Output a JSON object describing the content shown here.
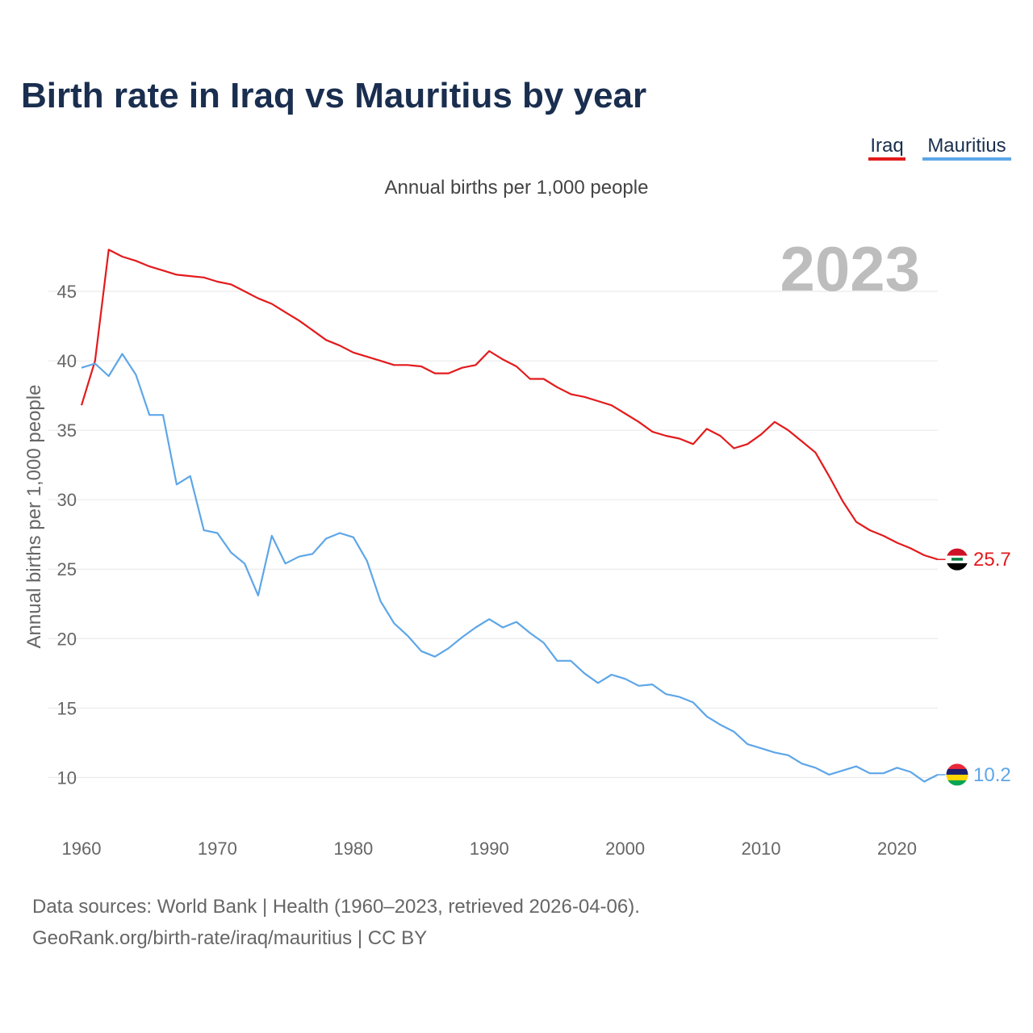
{
  "chart_data": {
    "type": "line",
    "title": "Birth rate in Iraq vs Mauritius by year",
    "subtitle": "Annual births per 1,000 people",
    "ylabel": "Annual births per 1,000 people",
    "xlabel": "",
    "year_label": "2023",
    "xlim": [
      1960,
      2023
    ],
    "ylim": [
      7,
      50
    ],
    "x_ticks": [
      1960,
      1970,
      1980,
      1990,
      2000,
      2010,
      2020
    ],
    "y_ticks": [
      10,
      15,
      20,
      25,
      30,
      35,
      40,
      45
    ],
    "legend_position": "top-right",
    "x": [
      1960,
      1961,
      1962,
      1963,
      1964,
      1965,
      1966,
      1967,
      1968,
      1969,
      1970,
      1971,
      1972,
      1973,
      1974,
      1975,
      1976,
      1977,
      1978,
      1979,
      1980,
      1981,
      1982,
      1983,
      1984,
      1985,
      1986,
      1987,
      1988,
      1989,
      1990,
      1991,
      1992,
      1993,
      1994,
      1995,
      1996,
      1997,
      1998,
      1999,
      2000,
      2001,
      2002,
      2003,
      2004,
      2005,
      2006,
      2007,
      2008,
      2009,
      2010,
      2011,
      2012,
      2013,
      2014,
      2015,
      2016,
      2017,
      2018,
      2019,
      2020,
      2021,
      2022,
      2023
    ],
    "series": [
      {
        "name": "Iraq",
        "color": "#e31a1c",
        "end_label": "25.7",
        "flag": "iraq-flag",
        "values": [
          36.8,
          40.0,
          48.0,
          47.5,
          47.2,
          46.8,
          46.5,
          46.2,
          46.1,
          46.0,
          45.7,
          45.5,
          45.0,
          44.5,
          44.1,
          43.5,
          42.9,
          42.2,
          41.5,
          41.1,
          40.6,
          40.3,
          40.0,
          39.7,
          39.7,
          39.6,
          39.1,
          39.1,
          39.5,
          39.7,
          40.7,
          40.1,
          39.6,
          38.7,
          38.7,
          38.1,
          37.6,
          37.4,
          37.1,
          36.8,
          36.2,
          35.6,
          34.9,
          34.6,
          34.4,
          34.0,
          35.1,
          34.6,
          33.7,
          34.0,
          34.7,
          35.6,
          35.0,
          34.2,
          33.4,
          31.7,
          29.9,
          28.4,
          27.8,
          27.4,
          26.9,
          26.5,
          26.0,
          25.7
        ]
      },
      {
        "name": "Mauritius",
        "color": "#5ea6e8",
        "end_label": "10.2",
        "flag": "mauritius-flag",
        "values": [
          39.5,
          39.8,
          38.9,
          40.5,
          39.0,
          36.1,
          36.1,
          31.1,
          31.7,
          27.8,
          27.6,
          26.2,
          25.4,
          23.1,
          27.4,
          25.4,
          25.9,
          26.1,
          27.2,
          27.6,
          27.3,
          25.6,
          22.7,
          21.1,
          20.2,
          19.1,
          18.7,
          19.3,
          20.1,
          20.8,
          21.4,
          20.8,
          21.2,
          20.4,
          19.7,
          18.4,
          18.4,
          17.5,
          16.8,
          17.4,
          17.1,
          16.6,
          16.7,
          16.0,
          15.8,
          15.4,
          14.4,
          13.8,
          13.3,
          12.4,
          12.1,
          11.8,
          11.6,
          11.0,
          10.7,
          10.2,
          10.5,
          10.8,
          10.3,
          10.3,
          10.7,
          10.4,
          9.7,
          10.2
        ]
      }
    ]
  },
  "legend": {
    "items": [
      "Iraq",
      "Mauritius"
    ]
  },
  "footer": {
    "line1": "Data sources: World Bank | Health (1960–2023, retrieved 2026-04-06).",
    "line2": "GeoRank.org/birth-rate/iraq/mauritius | CC BY"
  }
}
